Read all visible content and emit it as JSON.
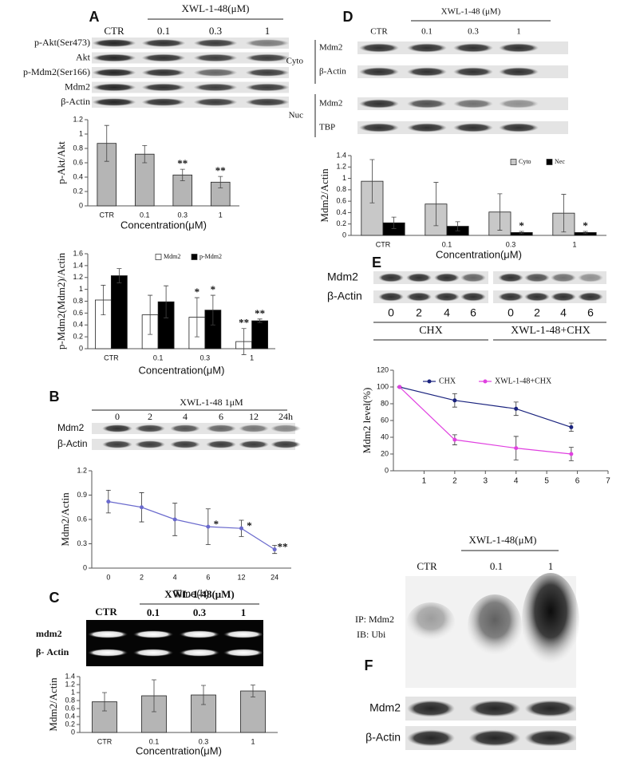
{
  "chart_data": [
    {
      "type": "bar",
      "ylabel": "p-Akt/Akt",
      "xlabel": "Concentration(μM)",
      "categories": [
        "CTR",
        "0.1",
        "0.3",
        "1"
      ],
      "values": [
        0.87,
        0.72,
        0.43,
        0.33
      ],
      "errors": [
        0.25,
        0.12,
        0.08,
        0.08
      ],
      "stars": [
        null,
        null,
        "**",
        "**"
      ],
      "color": "#b5b5b5",
      "ylim": [
        0,
        1.2
      ],
      "yticks": [
        0,
        0.2,
        0.4,
        0.6,
        0.8,
        1,
        1.2
      ]
    },
    {
      "type": "bar",
      "ylabel": "p-Mdm2(Mdm2)/Actin",
      "xlabel": "Concentration(μM)",
      "categories": [
        "CTR",
        "0.1",
        "0.3",
        "1"
      ],
      "series": [
        {
          "name": "Mdm2",
          "color": "#ffffff",
          "values": [
            0.82,
            0.57,
            0.53,
            0.12
          ],
          "errors": [
            0.25,
            0.33,
            0.33,
            0.22
          ],
          "stars": [
            null,
            null,
            "*",
            "**"
          ]
        },
        {
          "name": "p-Mdm2",
          "color": "#000000",
          "values": [
            1.23,
            0.79,
            0.65,
            0.47
          ],
          "errors": [
            0.12,
            0.27,
            0.25,
            0.03
          ],
          "stars": [
            null,
            null,
            "*",
            "**"
          ]
        }
      ],
      "ylim": [
        0,
        1.6
      ],
      "yticks": [
        0,
        0.2,
        0.4,
        0.6,
        0.8,
        1,
        1.2,
        1.4,
        1.6
      ],
      "legend": "top"
    },
    {
      "type": "line",
      "ylabel": "Mdm2/Actin",
      "xlabel": "Time(h)",
      "categories": [
        "0",
        "2",
        "4",
        "6",
        "12",
        "24"
      ],
      "values": [
        0.82,
        0.75,
        0.6,
        0.51,
        0.49,
        0.23
      ],
      "errors": [
        0.14,
        0.18,
        0.2,
        0.22,
        0.1,
        0.05
      ],
      "stars": [
        null,
        null,
        null,
        "*",
        "*",
        "**"
      ],
      "color": "#6a6acd",
      "ylim": [
        0,
        1.2
      ],
      "yticks": [
        0,
        0.3,
        0.6,
        0.9,
        1.2
      ]
    },
    {
      "type": "bar",
      "ylabel": "Mdm2/Actin",
      "xlabel": "Concentration(μM)",
      "categories": [
        "CTR",
        "0.1",
        "0.3",
        "1"
      ],
      "values": [
        0.77,
        0.92,
        0.94,
        1.04
      ],
      "errors": [
        0.23,
        0.4,
        0.24,
        0.15
      ],
      "stars": [
        null,
        null,
        null,
        null
      ],
      "color": "#b5b5b5",
      "ylim": [
        0,
        1.4
      ],
      "yticks": [
        0,
        0.2,
        0.4,
        0.6,
        0.8,
        1,
        1.2,
        1.4
      ]
    },
    {
      "type": "bar",
      "ylabel": "Mdm2/Actin",
      "xlabel": "Concentration(μM)",
      "categories": [
        "CTR",
        "0.1",
        "0.3",
        "1"
      ],
      "series": [
        {
          "name": "Cyto",
          "color": "#c8c8c8",
          "values": [
            0.95,
            0.55,
            0.41,
            0.39
          ],
          "errors": [
            0.38,
            0.38,
            0.32,
            0.33
          ],
          "stars": [
            null,
            null,
            null,
            null
          ]
        },
        {
          "name": "Nec",
          "color": "#000000",
          "values": [
            0.22,
            0.16,
            0.05,
            0.05
          ],
          "errors": [
            0.1,
            0.08,
            0.02,
            0.02
          ],
          "stars": [
            null,
            null,
            "*",
            "*"
          ]
        }
      ],
      "ylim": [
        0,
        1.4
      ],
      "yticks": [
        0,
        0.2,
        0.4,
        0.6,
        0.8,
        1,
        1.2,
        1.4
      ],
      "legend": "top-right"
    },
    {
      "type": "line",
      "ylabel": "Mdm2 level(%)",
      "x": [
        0.2,
        2,
        4,
        5.8
      ],
      "xlim": [
        0,
        7
      ],
      "xticks": [
        1,
        2,
        3,
        4,
        5,
        6,
        7
      ],
      "series": [
        {
          "name": "CHX",
          "color": "#1a237e",
          "values": [
            100,
            84,
            74,
            52
          ],
          "errors": [
            0,
            8,
            8,
            5
          ]
        },
        {
          "name": "XWL-1-48+CHX",
          "color": "#e040e0",
          "values": [
            100,
            37,
            27,
            20
          ],
          "errors": [
            0,
            6,
            14,
            8
          ]
        }
      ],
      "ylim": [
        0,
        120
      ],
      "yticks": [
        0,
        20,
        40,
        60,
        80,
        100,
        120
      ],
      "legend": "top"
    }
  ],
  "blots": {
    "A": {
      "panel": "A",
      "control": "CTR",
      "treatment": "XWL-1-48(μM)",
      "lanes": [
        "0.1",
        "0.3",
        "1"
      ],
      "rows": [
        "p-Akt(Ser473)",
        "Akt",
        "p-Mdm2(Ser166)",
        "Mdm2",
        "β-Actin"
      ]
    },
    "B": {
      "panel": "B",
      "treatment": "XWL-1-48 1μM",
      "lanes": [
        "0",
        "2",
        "4",
        "6",
        "12",
        "24h"
      ],
      "rows": [
        "Mdm2",
        "β-Actin"
      ]
    },
    "C": {
      "panel": "C",
      "control": "CTR",
      "treatment": "XWL-1-48(μM)",
      "lanes": [
        "0.1",
        "0.3",
        "1"
      ],
      "rows": [
        "mdm2",
        "β- Actin"
      ]
    },
    "D": {
      "panel": "D",
      "control": "CTR",
      "treatment": "XWL-1-48 (μM)",
      "lanes": [
        "0.1",
        "0.3",
        "1"
      ],
      "fractions": [
        "Cyto",
        "Nuc"
      ],
      "rows": [
        "Mdm2",
        "β-Actin",
        "Mdm2",
        "TBP"
      ]
    },
    "E": {
      "panel": "E",
      "rows": [
        "Mdm2",
        "β-Actin"
      ],
      "lanes": [
        "0",
        "2",
        "4",
        "6",
        "0",
        "2",
        "4",
        "6"
      ],
      "groups": [
        "CHX",
        "XWL-1-48+CHX"
      ]
    },
    "F": {
      "panel": "F",
      "control": "CTR",
      "treatment": "XWL-1-48(μM)",
      "lanes": [
        "0.1",
        "1"
      ],
      "ip": "IP: Mdm2",
      "ib": "IB: Ubi",
      "rows": [
        "Mdm2",
        "β-Actin"
      ]
    }
  }
}
